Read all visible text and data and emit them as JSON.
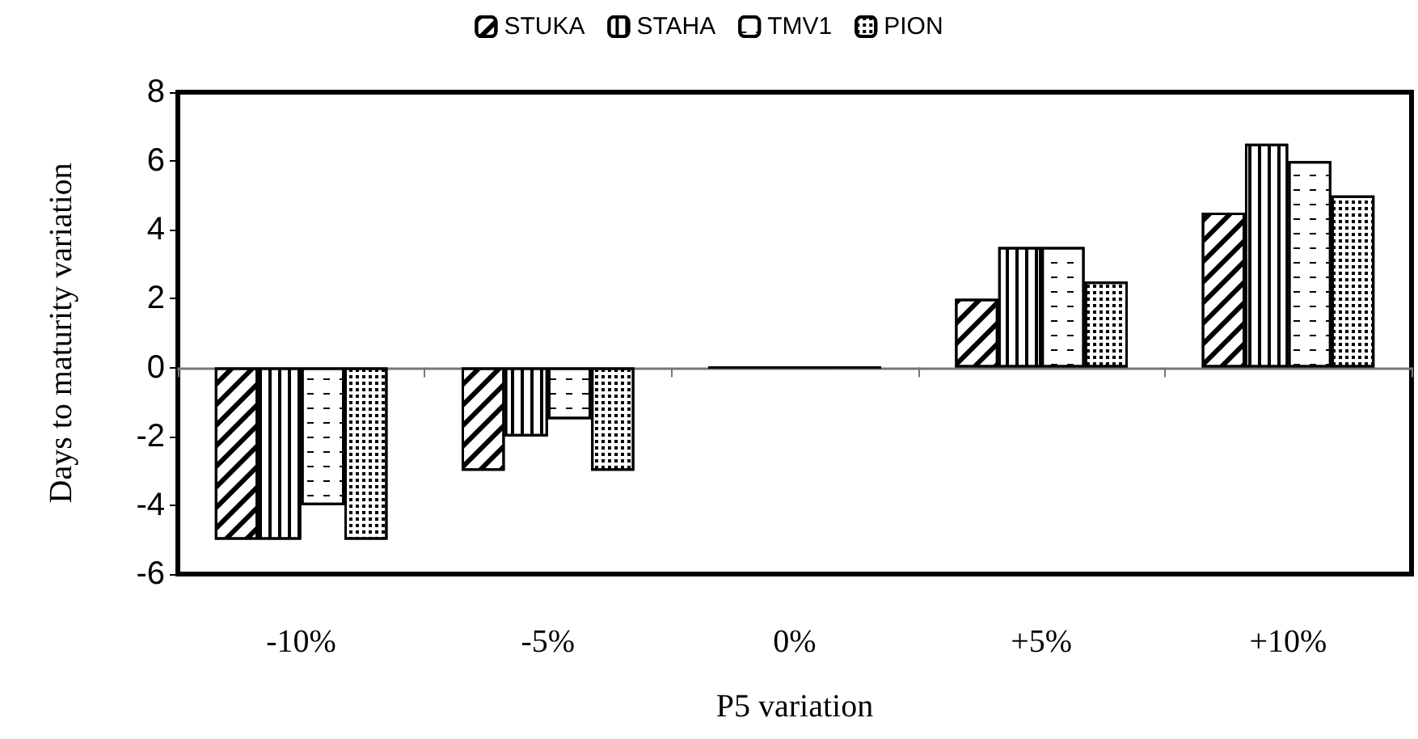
{
  "chart_data": {
    "type": "bar",
    "xlabel": "P5 variation",
    "ylabel": "Days to maturity variation",
    "categories": [
      "-10%",
      "-5%",
      "0%",
      "+5%",
      "+10%"
    ],
    "series": [
      {
        "name": "STUKA",
        "color": "#000000",
        "values": [
          -5,
          -3,
          0,
          2,
          4.5
        ]
      },
      {
        "name": "STAHA",
        "color": "#000000",
        "values": [
          -5,
          -2,
          0,
          3.5,
          6.5
        ]
      },
      {
        "name": "TMV1",
        "color": "#000000",
        "values": [
          -4,
          -1.5,
          0,
          3.5,
          6
        ]
      },
      {
        "name": "PION",
        "color": "#000000",
        "values": [
          -5,
          -3,
          0,
          2.5,
          5
        ]
      }
    ],
    "ylim": [
      -6,
      8
    ],
    "yticks": [
      -6,
      -4,
      -2,
      0,
      2,
      4,
      6,
      8
    ],
    "legend": "top"
  }
}
